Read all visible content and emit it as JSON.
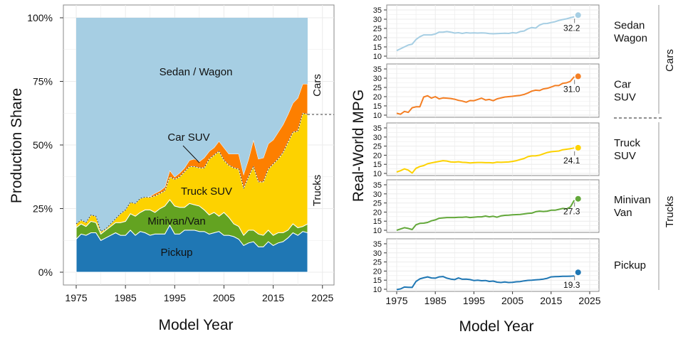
{
  "chart_data": [
    {
      "type": "area",
      "stacked": true,
      "ylabel": "Production Share",
      "xlabel": "Model Year",
      "ylim": [
        0,
        100
      ],
      "xlim": [
        1975,
        2027
      ],
      "y_ticks": [
        "0%",
        "25%",
        "50%",
        "75%",
        "100%"
      ],
      "x_ticks": [
        "1975",
        "1985",
        "1995",
        "2005",
        "2015",
        "2025"
      ],
      "grid": true,
      "group_labels": {
        "cars": "Cars",
        "trucks": "Trucks"
      },
      "x": [
        1975,
        1976,
        1977,
        1978,
        1979,
        1980,
        1981,
        1982,
        1983,
        1984,
        1985,
        1986,
        1987,
        1988,
        1989,
        1990,
        1991,
        1992,
        1993,
        1994,
        1995,
        1996,
        1997,
        1998,
        1999,
        2000,
        2001,
        2002,
        2003,
        2004,
        2005,
        2006,
        2007,
        2008,
        2009,
        2010,
        2011,
        2012,
        2013,
        2014,
        2015,
        2016,
        2017,
        2018,
        2019,
        2020,
        2021,
        2022
      ],
      "series": [
        {
          "name": "Pickup",
          "color": "#1f77b4",
          "values": [
            13,
            15,
            14.5,
            15.5,
            15.5,
            12.5,
            13.5,
            14.5,
            15.5,
            14.5,
            14.5,
            16.5,
            14.5,
            16,
            15.5,
            14.5,
            15,
            15,
            15,
            18.5,
            15,
            15,
            16.5,
            16.5,
            16.5,
            16,
            16,
            15,
            15.5,
            16,
            14.5,
            14.5,
            14,
            13,
            10.5,
            11.5,
            12,
            10,
            10,
            12,
            10.5,
            11.5,
            12,
            13.5,
            15.5,
            14.5,
            16,
            15.5
          ]
        },
        {
          "name": "Minivan/Van",
          "color": "#63a321",
          "values": [
            4.5,
            4,
            3.5,
            4.5,
            4,
            2.5,
            3,
            3.5,
            4,
            5,
            5.5,
            6.5,
            7.5,
            7.5,
            9,
            10,
            8.5,
            10,
            11,
            10,
            11,
            10.5,
            9,
            10.5,
            10,
            10,
            8.5,
            7.5,
            8,
            6,
            9,
            7,
            5,
            5,
            4,
            5,
            4.5,
            5,
            4.5,
            4.5,
            4,
            4,
            3.5,
            3,
            3.5,
            3,
            2,
            3.5
          ]
        },
        {
          "name": "Truck SUV",
          "color": "#fdd200",
          "values": [
            1.5,
            1.5,
            1.5,
            2.5,
            2.5,
            1,
            0.5,
            1,
            1.5,
            3.5,
            4.5,
            4.5,
            5,
            5.5,
            5,
            5,
            6.5,
            6,
            6,
            9,
            10.5,
            12,
            14,
            14.5,
            15,
            15,
            16.5,
            22,
            22.5,
            25.5,
            20.5,
            20.5,
            22,
            22.5,
            18.5,
            21,
            25,
            20.5,
            21,
            24,
            28,
            29,
            31.5,
            34.5,
            36,
            38,
            44.5,
            43
          ]
        },
        {
          "name": "Car SUV",
          "color": "#fd7f00",
          "values": [
            0,
            0,
            0,
            0,
            0,
            0,
            0,
            0,
            0,
            0,
            0,
            0,
            0,
            0,
            0,
            0.3,
            1,
            1,
            1.5,
            2.5,
            1,
            1.5,
            1.5,
            2.5,
            3,
            2.5,
            4,
            3,
            3,
            4,
            5,
            4.5,
            5.5,
            6,
            5.5,
            7,
            10.5,
            9,
            9.5,
            10,
            9.5,
            10.5,
            11,
            11,
            11.5,
            13,
            11.5,
            12
          ]
        },
        {
          "name": "Sedan / Wagon",
          "color": "#a6cee3",
          "values": [
            81,
            79.5,
            80.5,
            77.5,
            78,
            84,
            83,
            81,
            79,
            77,
            75.5,
            72.5,
            73,
            71,
            70.5,
            70.2,
            69,
            68,
            66.5,
            60,
            62.5,
            61,
            59,
            56,
            55.5,
            56.5,
            55,
            52.5,
            51,
            48.5,
            51,
            53.5,
            53.5,
            53.5,
            61.5,
            55.5,
            48,
            55.5,
            55,
            49.5,
            48,
            45,
            42,
            38,
            33.5,
            31.5,
            26,
            26
          ]
        }
      ]
    },
    {
      "type": "line",
      "facets": true,
      "ylabel": "Real-World MPG",
      "xlabel": "Model Year",
      "ylim": [
        10,
        35
      ],
      "xlim": [
        1975,
        2027
      ],
      "y_ticks": [
        "10",
        "15",
        "20",
        "25",
        "30",
        "35"
      ],
      "x_ticks": [
        "1975",
        "1985",
        "1995",
        "2005",
        "2015",
        "2025"
      ],
      "grid": true,
      "group_labels": {
        "cars": "Cars",
        "trucks": "Trucks"
      },
      "x": [
        1975,
        1976,
        1977,
        1978,
        1979,
        1980,
        1981,
        1982,
        1983,
        1984,
        1985,
        1986,
        1987,
        1988,
        1989,
        1990,
        1991,
        1992,
        1993,
        1994,
        1995,
        1996,
        1997,
        1998,
        1999,
        2000,
        2001,
        2002,
        2003,
        2004,
        2005,
        2006,
        2007,
        2008,
        2009,
        2010,
        2011,
        2012,
        2013,
        2014,
        2015,
        2016,
        2017,
        2018,
        2019,
        2020,
        2021
      ],
      "series": [
        {
          "name": "Sedan Wagon",
          "label_lines": [
            "Sedan",
            "Wagon"
          ],
          "color": "#a6cee3",
          "point_year": 2022,
          "point_value": 32.2,
          "point_label": "32.2",
          "values": [
            13,
            14,
            15,
            16,
            16.5,
            19,
            20.5,
            21.5,
            21.5,
            21.5,
            22,
            23,
            23,
            23.3,
            23,
            22.5,
            22.7,
            22.3,
            22.7,
            22.5,
            22.6,
            22.5,
            22.6,
            22.5,
            22.2,
            22.1,
            22.2,
            22.3,
            22.4,
            22.3,
            22.7,
            22.5,
            23.3,
            23.6,
            24.8,
            25.5,
            25.2,
            26.8,
            27.6,
            27.7,
            28.2,
            28.6,
            29.3,
            29.8,
            30.2,
            30.8,
            31.3
          ]
        },
        {
          "name": "Car SUV",
          "label_lines": [
            "Car",
            "SUV"
          ],
          "color": "#f47f24",
          "point_year": 2022,
          "point_value": 31.0,
          "point_label": "31.0",
          "values": [
            11,
            10.5,
            12,
            11.5,
            14,
            14.5,
            14.5,
            19.8,
            20.5,
            19.2,
            20,
            18.8,
            19.3,
            19.2,
            19,
            18.6,
            18,
            17.6,
            17,
            17.9,
            17.8,
            18.5,
            19.2,
            18.2,
            18.5,
            17.8,
            18.8,
            19.3,
            19.8,
            20,
            20.2,
            20.5,
            20.7,
            21.2,
            22,
            23,
            23.5,
            23.3,
            24.2,
            24.5,
            25.2,
            26,
            26,
            27.2,
            27.5,
            28.3,
            30.8
          ]
        },
        {
          "name": "Truck SUV",
          "label_lines": [
            "Truck",
            "SUV"
          ],
          "color": "#fdd200",
          "point_year": 2022,
          "point_value": 24.1,
          "point_label": "24.1",
          "values": [
            10.8,
            11.5,
            12.5,
            11.8,
            10.2,
            12.8,
            13.8,
            14.3,
            15.3,
            15.8,
            16.2,
            16.6,
            17,
            16.8,
            16.3,
            16.2,
            16.4,
            16.1,
            16,
            15.8,
            15.9,
            16,
            16,
            15.9,
            15.9,
            15.8,
            16.2,
            16.1,
            16.2,
            16.3,
            16.6,
            17,
            17.6,
            18.2,
            19.2,
            19.6,
            19.7,
            20,
            20.8,
            21.5,
            21.9,
            22.1,
            22.3,
            23,
            23.3,
            23.6,
            24
          ]
        },
        {
          "name": "Minivan Van",
          "label_lines": [
            "Minivan",
            "Van"
          ],
          "color": "#63a83a",
          "point_year": 2022,
          "point_value": 27.3,
          "point_label": "27.3",
          "values": [
            10,
            10.7,
            11.4,
            11,
            10.4,
            13,
            13.8,
            13.9,
            14.3,
            15.2,
            15.7,
            16.6,
            16.8,
            17,
            17,
            17,
            17.1,
            17.1,
            17.3,
            17,
            17.2,
            17.4,
            17.4,
            17.8,
            17.4,
            17.7,
            17.2,
            17.9,
            18.2,
            18.3,
            18.5,
            18.6,
            18.7,
            19,
            19.3,
            19.4,
            20.2,
            20.5,
            20.3,
            20.5,
            21,
            21,
            21.5,
            22,
            21.7,
            22.8,
            26.5
          ]
        },
        {
          "name": "Pickup",
          "label_lines": [
            "Pickup"
          ],
          "color": "#1f77b4",
          "point_year": 2022,
          "point_value": 19.3,
          "point_label": "19.3",
          "values": [
            9.8,
            10.2,
            11.2,
            11.1,
            11,
            14.3,
            15.7,
            16.3,
            16.8,
            16.2,
            16.1,
            16.8,
            17,
            16.1,
            15.6,
            15.3,
            16.2,
            15.5,
            15.6,
            15.3,
            14.8,
            15,
            14.7,
            14.8,
            14.3,
            14.5,
            13.9,
            13.7,
            14,
            13.7,
            13.8,
            14.1,
            14.2,
            14.6,
            14.9,
            15,
            15.2,
            15.3,
            15.6,
            16,
            16.8,
            16.9,
            17,
            17.1,
            17.1,
            17.2,
            17.3
          ]
        }
      ]
    }
  ]
}
